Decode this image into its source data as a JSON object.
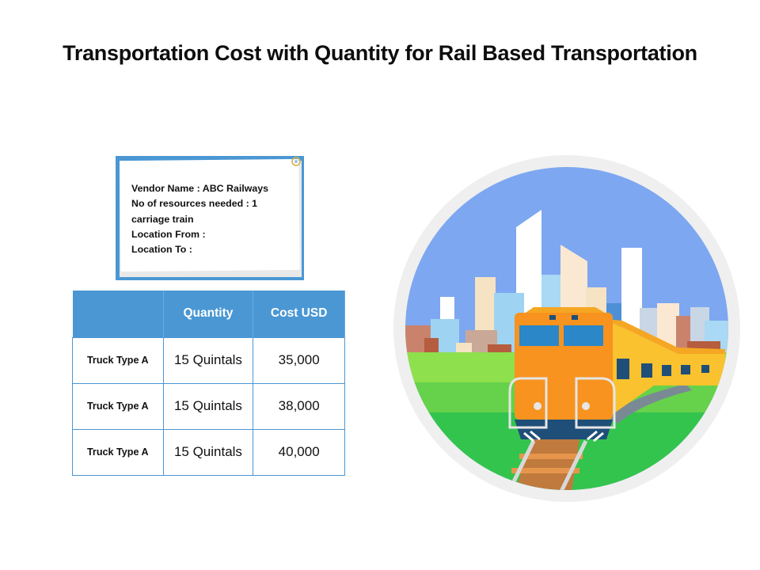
{
  "title": "Transportation Cost with Quantity for Rail Based Transportation",
  "note": {
    "vendor": "Vendor Name : ABC Railways",
    "resources": "No of resources needed : 1 carriage train",
    "from": "Location From :",
    "to": "Location To :"
  },
  "table": {
    "headers": [
      "",
      "Quantity",
      "Cost USD"
    ],
    "rows": [
      {
        "label": "Truck Type A",
        "quantity": "15 Quintals",
        "cost": "35,000"
      },
      {
        "label": "Truck Type A",
        "quantity": "15 Quintals",
        "cost": "38,000"
      },
      {
        "label": "Truck Type A",
        "quantity": "15 Quintals",
        "cost": "40,000"
      }
    ]
  },
  "colors": {
    "accent": "#4a97d4",
    "sky": "#7da7f0",
    "grass": "#7ed957",
    "train_orange": "#f7931e",
    "train_yellow": "#f9c22e",
    "train_navy": "#1f4e79"
  },
  "icons": [
    "paperclip-icon",
    "train-illustration"
  ]
}
